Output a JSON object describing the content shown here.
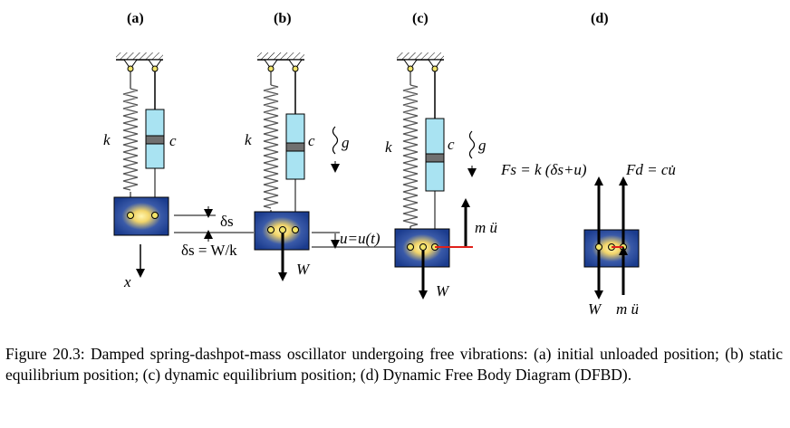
{
  "panels": [
    {
      "id": "a",
      "label": "(a)"
    },
    {
      "id": "b",
      "label": "(b)"
    },
    {
      "id": "c",
      "label": "(c)"
    },
    {
      "id": "d",
      "label": "(d)"
    }
  ],
  "labels": {
    "spring": "k",
    "damper": "c",
    "gravity": "g",
    "coord": "x",
    "weight": "W",
    "inertia": "m ü",
    "delta_s": "δs",
    "delta_s_eq": "δs = W/k",
    "u_eq": "u=u(t)",
    "spring_force": "Fs = k (δs+u)",
    "damping_force": "Fd = cu̇"
  },
  "caption": {
    "text": "Figure 20.3: Damped spring-dashpot-mass oscillator undergoing free vibrations: (a) initial unloaded position; (b) static equilibrium position; (c) dynamic equilibrium position; (d) Dynamic Free Body Diagram (DFBD)."
  },
  "colors": {
    "mass_fill": "#1c3b8c",
    "mass_glow": "#f5e27a",
    "damper_fill": "#a9e3f2",
    "piston": "#707070",
    "reaction_line": "#e0201a"
  }
}
